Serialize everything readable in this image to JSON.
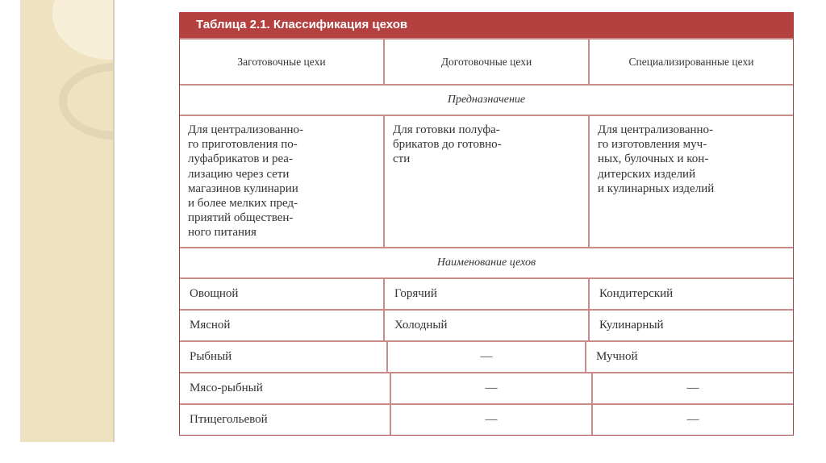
{
  "table": {
    "title": "Таблица 2.1. Классификация цехов",
    "columns": [
      "Заготовочные цехи",
      "Доготовочные цехи",
      "Специализированные цехи"
    ],
    "purpose_label": "Предназначение",
    "purpose": [
      "Для централизованно-\nго приготовления по-\nлуфабрикатов и реа-\nлизацию через сети\nмагазинов кулинарии\nи более мелких пред-\nприятий обществен-\nного питания",
      "Для готовки полуфа-\nбрикатов до готовно-\nсти",
      "Для централизованно-\nго изготовления муч-\nных, булочных и кон-\nдитерских изделий\nи кулинарных изделий"
    ],
    "names_label": "Наименование цехов",
    "rows": [
      [
        "Овощной",
        "Горячий",
        "Кондитерский"
      ],
      [
        "Мясной",
        "Холодный",
        "Кулинарный"
      ],
      [
        "Рыбный",
        "—",
        "Мучной"
      ],
      [
        "Мясо-рыбный",
        "—",
        "—"
      ],
      [
        "Птицегольевой",
        "—",
        "—"
      ]
    ]
  }
}
